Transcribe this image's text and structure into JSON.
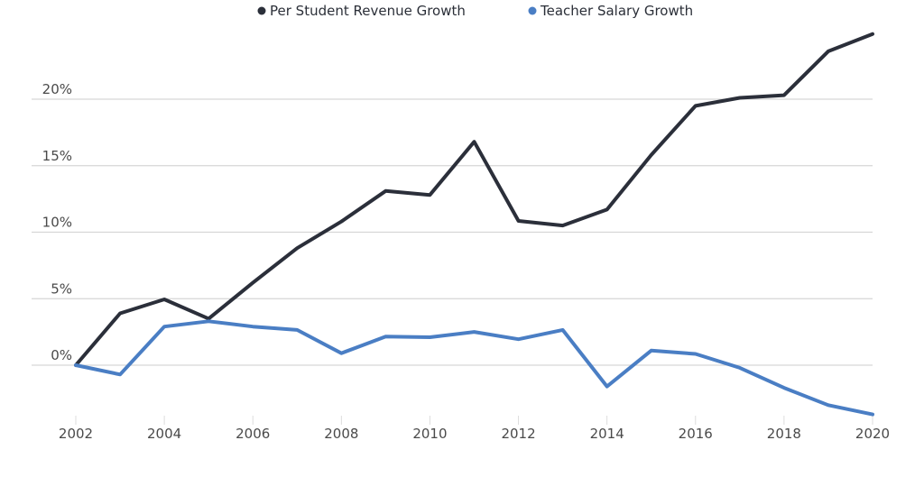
{
  "chart_data": {
    "type": "line",
    "title": "",
    "xlabel": "",
    "ylabel": "",
    "x": [
      2002,
      2003,
      2004,
      2005,
      2006,
      2007,
      2008,
      2009,
      2010,
      2011,
      2012,
      2013,
      2014,
      2015,
      2016,
      2017,
      2018,
      2019,
      2020
    ],
    "xlim": [
      2002,
      2020
    ],
    "ylim": [
      -4,
      25
    ],
    "x_ticks": [
      "2002",
      "2004",
      "2006",
      "2008",
      "2010",
      "2012",
      "2014",
      "2016",
      "2018",
      "2020"
    ],
    "x_tick_values": [
      2002,
      2004,
      2006,
      2008,
      2010,
      2012,
      2014,
      2016,
      2018,
      2020
    ],
    "y_ticks": [
      "0%",
      "5%",
      "10%",
      "15%",
      "20%"
    ],
    "y_tick_values": [
      0,
      5,
      10,
      15,
      20
    ],
    "grid": true,
    "legend_position": "top-center",
    "series": [
      {
        "name": "Per Student Revenue Growth",
        "color": "#2b2f3a",
        "values": [
          0,
          3.9,
          4.95,
          3.5,
          6.2,
          8.8,
          10.8,
          13.1,
          12.8,
          16.8,
          10.85,
          10.5,
          11.7,
          15.8,
          19.5,
          20.1,
          20.3,
          23.6,
          24.9
        ]
      },
      {
        "name": "Teacher Salary Growth",
        "color": "#4a7ec4",
        "values": [
          0,
          -0.7,
          2.9,
          3.3,
          2.9,
          2.65,
          0.9,
          2.15,
          2.1,
          2.5,
          1.95,
          2.65,
          -1.6,
          1.1,
          0.85,
          -0.2,
          -1.7,
          -3.0,
          -3.7
        ]
      }
    ]
  }
}
